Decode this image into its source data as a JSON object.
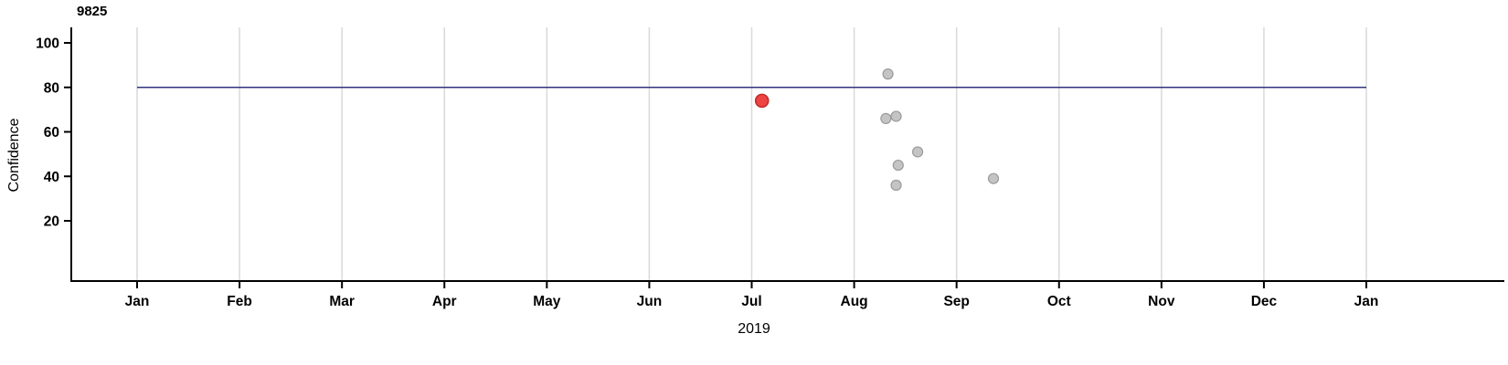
{
  "chart_data": {
    "type": "scatter",
    "title": "9825",
    "xlabel": "2019",
    "ylabel": "Confidence",
    "x_tick_labels": [
      "Jan",
      "Feb",
      "Mar",
      "Apr",
      "May",
      "Jun",
      "Jul",
      "Aug",
      "Sep",
      "Oct",
      "Nov",
      "Dec",
      "Jan"
    ],
    "y_ticks": [
      20,
      40,
      60,
      80,
      100
    ],
    "ylim": [
      0,
      100
    ],
    "grid": "vertical-month-gridlines",
    "legend": "none",
    "reference_line": {
      "y": 80,
      "color": "#31317d"
    },
    "points": [
      {
        "x_month": 6.1,
        "y": 74,
        "highlight": true
      },
      {
        "x_month": 7.33,
        "y": 86,
        "highlight": false
      },
      {
        "x_month": 7.31,
        "y": 66,
        "highlight": false
      },
      {
        "x_month": 7.41,
        "y": 67,
        "highlight": false
      },
      {
        "x_month": 7.62,
        "y": 51,
        "highlight": false
      },
      {
        "x_month": 7.43,
        "y": 45,
        "highlight": false
      },
      {
        "x_month": 7.41,
        "y": 36,
        "highlight": false
      },
      {
        "x_month": 8.36,
        "y": 39,
        "highlight": false
      }
    ],
    "colors": {
      "point_fill": "#c4c4c4",
      "point_stroke": "#9b9b9b",
      "highlight_fill": "#ee4343",
      "highlight_stroke": "#c22b2b",
      "grid": "#d9d9d9",
      "axis": "#000000",
      "background": "#ffffff"
    }
  }
}
